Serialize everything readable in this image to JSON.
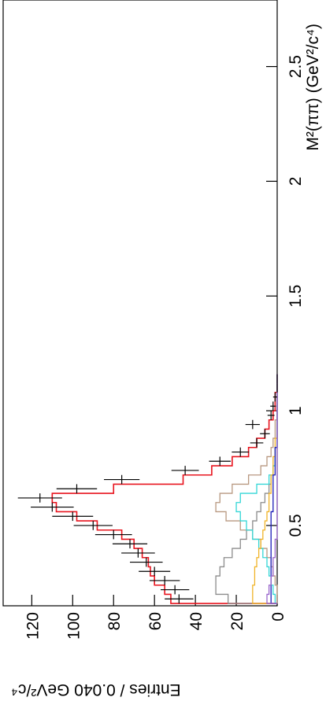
{
  "chart_data": {
    "type": "histogram",
    "x_label": "M²(ππ) (GeV²/c⁴)",
    "y_label": "Entries / 0.040 GeV²/c⁴",
    "xlim": [
      0.15,
      2.79
    ],
    "ylim": [
      0,
      134
    ],
    "xticks": [
      0.5,
      1,
      1.5,
      2,
      2.5
    ],
    "yticks": [
      0,
      20,
      40,
      60,
      80,
      100,
      120
    ],
    "bins": [
      0.16,
      0.2,
      0.24,
      0.28,
      0.32,
      0.36,
      0.4,
      0.44,
      0.48,
      0.52,
      0.56,
      0.6,
      0.64,
      0.68,
      0.72,
      0.76,
      0.8,
      0.84,
      0.88,
      0.92,
      0.96,
      1.0,
      1.04,
      1.08,
      1.12,
      1.16
    ],
    "data": {
      "color": "#000000",
      "values": [
        48,
        50,
        55,
        60,
        64,
        68,
        72,
        80,
        90,
        100,
        110,
        116,
        98,
        76,
        45,
        28,
        18,
        10,
        6,
        12,
        3,
        2,
        1,
        0,
        0
      ],
      "errors": [
        7,
        7,
        7.4,
        7.7,
        8,
        8.2,
        8.5,
        9,
        9.5,
        10,
        10.5,
        10.8,
        9.9,
        8.7,
        6.7,
        5.3,
        4.2,
        3.2,
        2.4,
        3.5,
        1.7,
        1.4,
        1,
        0,
        0
      ]
    },
    "series": [
      {
        "color": "#e8141e",
        "values": [
          52,
          55,
          60,
          62,
          63,
          66,
          70,
          76,
          88,
          98,
          108,
          110,
          80,
          46,
          32,
          22,
          14,
          10,
          6,
          4,
          2,
          1,
          1,
          0,
          0
        ]
      },
      {
        "color": "#8c8c8c",
        "values": [
          24,
          30,
          30,
          28,
          26,
          22,
          18,
          15,
          12,
          10,
          8,
          6,
          4,
          3,
          2,
          1,
          1,
          0,
          0,
          0,
          0,
          0,
          0,
          0,
          0
        ]
      },
      {
        "color": "#b89880",
        "values": [
          0,
          0,
          1,
          2,
          3,
          5,
          8,
          12,
          18,
          25,
          30,
          28,
          22,
          14,
          8,
          5,
          3,
          2,
          1,
          1,
          0,
          0,
          0,
          0,
          0
        ]
      },
      {
        "color": "#33d6d6",
        "values": [
          1,
          2,
          3,
          4,
          5,
          7,
          9,
          12,
          15,
          18,
          20,
          18,
          10,
          4,
          2,
          1,
          1,
          0,
          0,
          0,
          0,
          0,
          0,
          0,
          0
        ]
      },
      {
        "color": "#f0b429",
        "values": [
          12,
          12,
          11,
          11,
          10,
          9,
          8,
          7,
          6,
          5,
          4,
          4,
          3,
          3,
          2,
          2,
          1,
          1,
          0,
          0,
          0,
          0,
          0,
          0,
          0
        ]
      },
      {
        "color": "#1a1ab8",
        "values": [
          3,
          3,
          3,
          3,
          3,
          3,
          3,
          3,
          3,
          3,
          2,
          2,
          2,
          2,
          1,
          1,
          1,
          0,
          0,
          0,
          0,
          0,
          0,
          0,
          0
        ]
      },
      {
        "color": "#9966cc",
        "values": [
          5,
          4,
          3,
          2,
          2,
          1,
          1,
          0,
          0,
          0,
          0,
          0,
          0,
          0,
          0,
          0,
          0,
          0,
          0,
          0,
          0,
          0,
          0,
          0,
          0
        ]
      }
    ]
  }
}
